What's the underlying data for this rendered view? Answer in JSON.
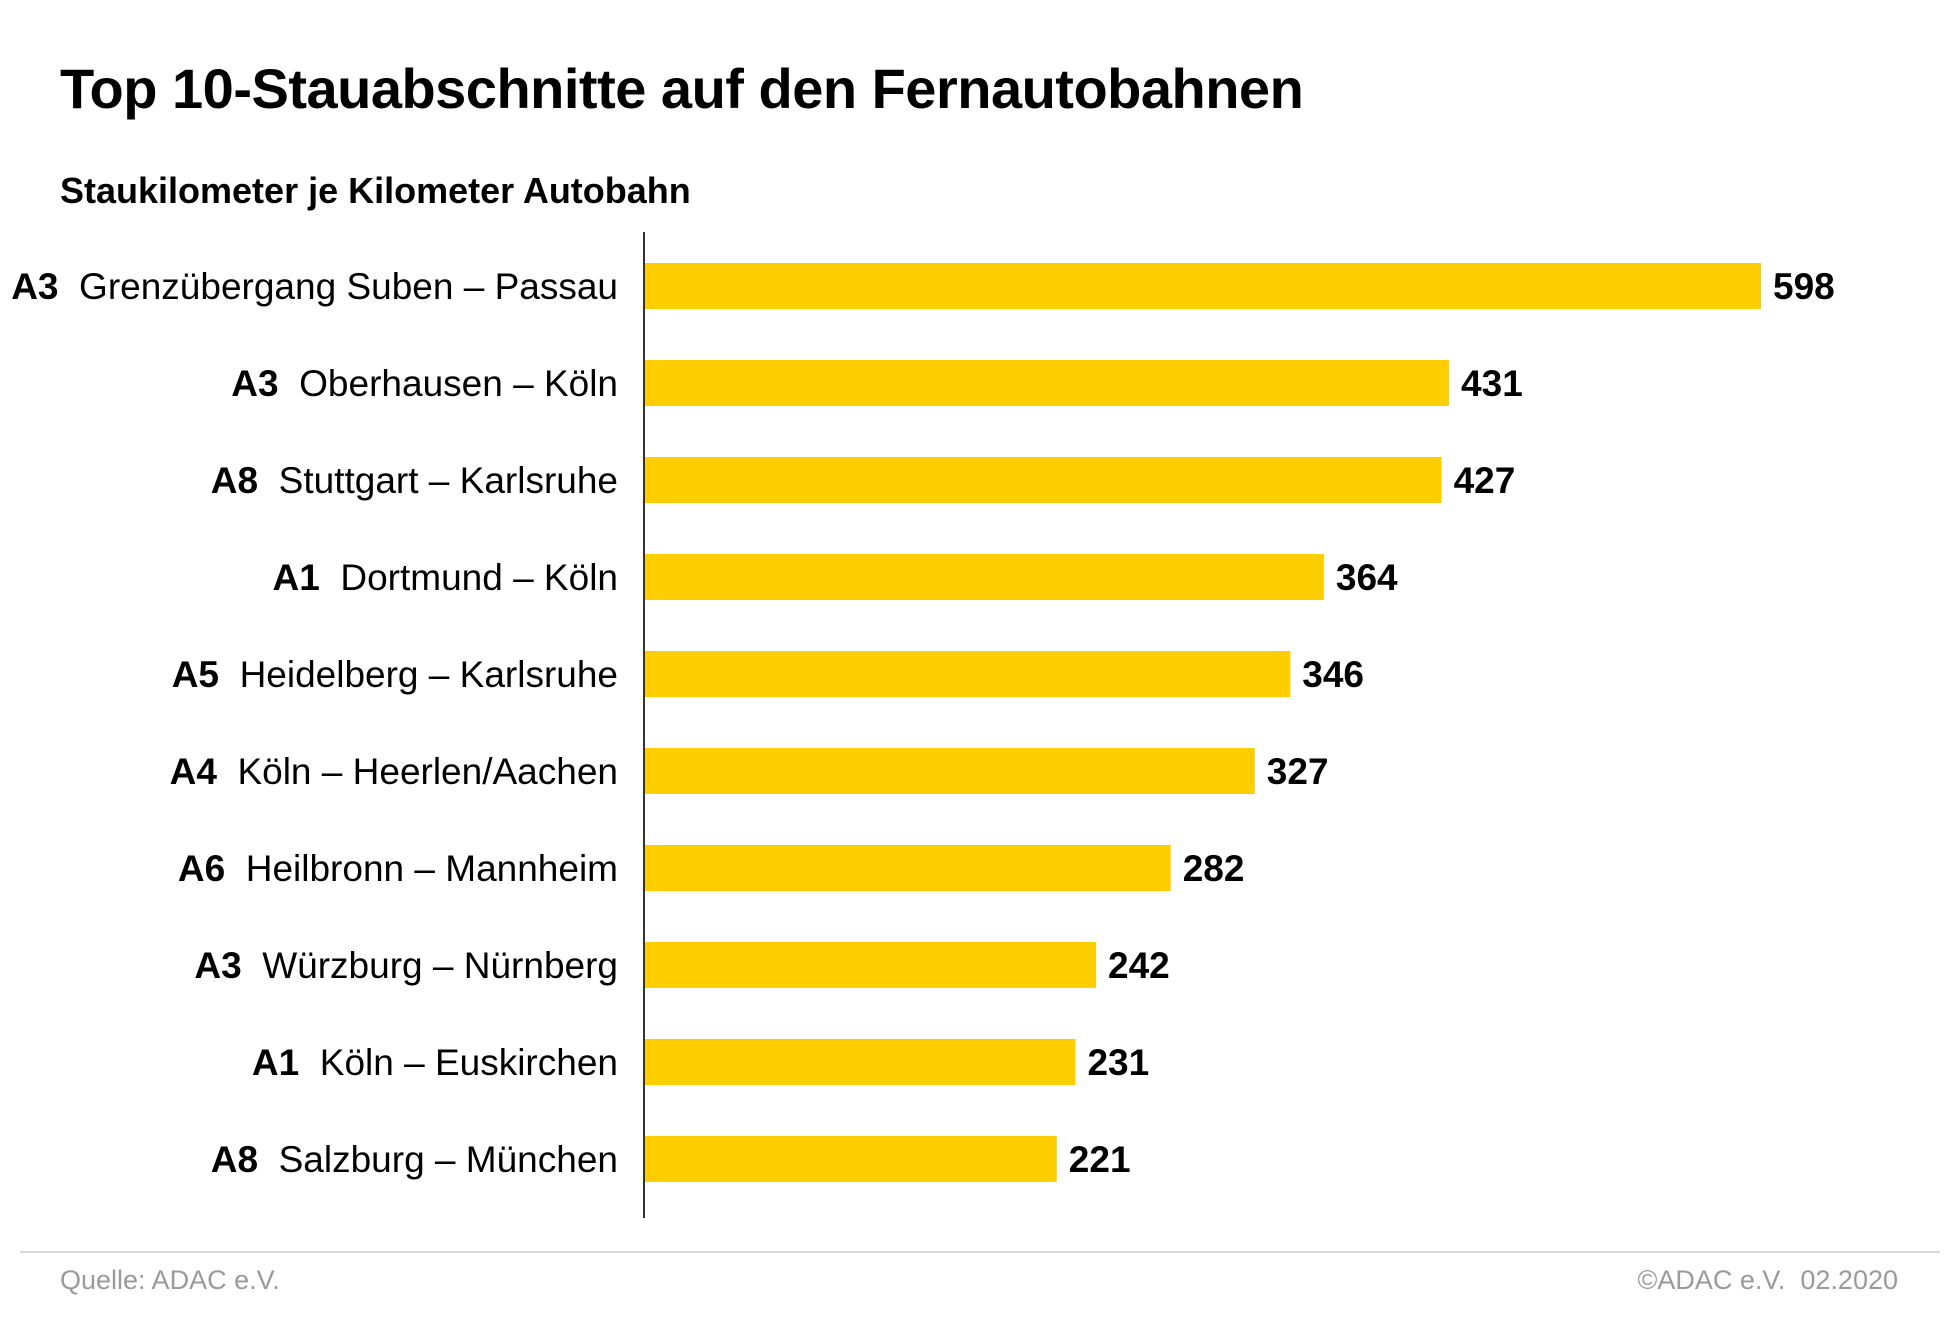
{
  "chart_data": {
    "type": "bar",
    "orientation": "horizontal",
    "title": "Top 10-Stauabschnitte auf den Fernautobahnen",
    "subtitle": "Staukilometer je Kilometer Autobahn",
    "categories": [
      {
        "code": "A3",
        "name": "Grenzübergang Suben – Passau"
      },
      {
        "code": "A3",
        "name": "Oberhausen – Köln"
      },
      {
        "code": "A8",
        "name": "Stuttgart – Karlsruhe"
      },
      {
        "code": "A1",
        "name": "Dortmund – Köln"
      },
      {
        "code": "A5",
        "name": "Heidelberg – Karlsruhe"
      },
      {
        "code": "A4",
        "name": "Köln – Heerlen/Aachen"
      },
      {
        "code": "A6",
        "name": "Heilbronn – Mannheim"
      },
      {
        "code": "A3",
        "name": "Würzburg – Nürnberg"
      },
      {
        "code": "A1",
        "name": "Köln – Euskirchen"
      },
      {
        "code": "A8",
        "name": "Salzburg – München"
      }
    ],
    "values": [
      598,
      431,
      427,
      364,
      346,
      327,
      282,
      242,
      231,
      221
    ],
    "xlim": [
      0,
      598
    ],
    "grid": false,
    "data_labels": true,
    "bar_color": "#FFCE00",
    "axis_color": "#333333"
  },
  "footer": {
    "source": "Quelle: ADAC e.V.",
    "copyright": "©ADAC e.V.  02.2020"
  }
}
